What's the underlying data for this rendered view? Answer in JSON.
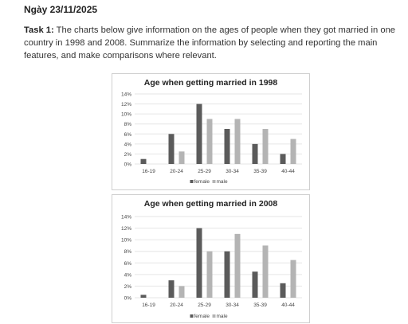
{
  "header": {
    "date": "Ngày 23/11/2025",
    "task_label": "Task 1:",
    "task_text": " The charts below give information on the ages of people when they got married in one country in 1998 and 2008. Summarize the information by selecting and reporting the main features, and make comparisons where relevant."
  },
  "colors": {
    "female": "#5b5b5b",
    "male": "#b4b4b4",
    "grid": "#e6e6e6",
    "axis_text": "#444444"
  },
  "chart_data": [
    {
      "type": "bar",
      "title": "Age when getting married in 1998",
      "categories": [
        "16-19",
        "20-24",
        "25-29",
        "30-34",
        "35-39",
        "40-44"
      ],
      "series": [
        {
          "name": "female",
          "values": [
            1,
            6,
            12,
            7,
            4,
            2
          ]
        },
        {
          "name": "male",
          "values": [
            0,
            2.5,
            9,
            9,
            7,
            5
          ]
        }
      ],
      "ylim": [
        0,
        14
      ],
      "yticks": [
        "0%",
        "2%",
        "4%",
        "6%",
        "8%",
        "10%",
        "12%",
        "14%"
      ],
      "grid": true,
      "legend": "bottom"
    },
    {
      "type": "bar",
      "title": "Age when getting married in 2008",
      "categories": [
        "16-19",
        "20-24",
        "25-29",
        "30-34",
        "35-39",
        "40-44"
      ],
      "series": [
        {
          "name": "female",
          "values": [
            0.5,
            3,
            12,
            8,
            4.5,
            2.5
          ]
        },
        {
          "name": "male",
          "values": [
            0,
            2,
            8,
            11,
            9,
            6.5
          ]
        }
      ],
      "ylim": [
        0,
        14
      ],
      "yticks": [
        "0%",
        "2%",
        "4%",
        "6%",
        "8%",
        "10%",
        "12%",
        "14%"
      ],
      "grid": true,
      "legend": "bottom"
    }
  ]
}
